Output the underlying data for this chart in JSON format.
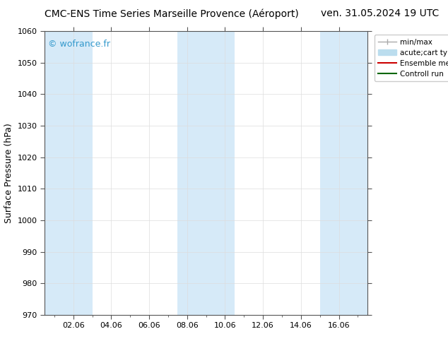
{
  "title_left": "CMC-ENS Time Series Marseille Provence (Aéroport)",
  "title_right": "ven. 31.05.2024 19 UTC",
  "ylabel": "Surface Pressure (hPa)",
  "ylim": [
    970,
    1060
  ],
  "yticks": [
    970,
    980,
    990,
    1000,
    1010,
    1020,
    1030,
    1040,
    1050,
    1060
  ],
  "xtick_labels": [
    "02.06",
    "04.06",
    "06.06",
    "08.06",
    "10.06",
    "12.06",
    "14.06",
    "16.06"
  ],
  "xtick_positions": [
    2,
    4,
    6,
    8,
    10,
    12,
    14,
    16
  ],
  "xlim": [
    0.5,
    17.5
  ],
  "watermark": "© wofrance.fr",
  "watermark_color": "#3399cc",
  "bg_color": "#ffffff",
  "plot_bg_color": "#ffffff",
  "shaded_bands": [
    {
      "xstart": 0.5,
      "xend": 3.0,
      "color": "#d6eaf8"
    },
    {
      "xstart": 7.5,
      "xend": 10.5,
      "color": "#d6eaf8"
    },
    {
      "xstart": 15.0,
      "xend": 17.5,
      "color": "#d6eaf8"
    }
  ],
  "legend_items": [
    {
      "label": "min/max",
      "color": "#aaaaaa",
      "lw": 1,
      "style": "errorbar"
    },
    {
      "label": "acute;cart type",
      "color": "#bbddee",
      "lw": 8,
      "style": "band"
    },
    {
      "label": "Ensemble mean run",
      "color": "#cc0000",
      "lw": 1.5,
      "style": "line"
    },
    {
      "label": "Controll run",
      "color": "#006600",
      "lw": 1.5,
      "style": "line"
    }
  ],
  "title_fontsize": 10,
  "axis_label_fontsize": 9,
  "tick_fontsize": 8,
  "grid_color": "#dddddd",
  "border_color": "#555555"
}
